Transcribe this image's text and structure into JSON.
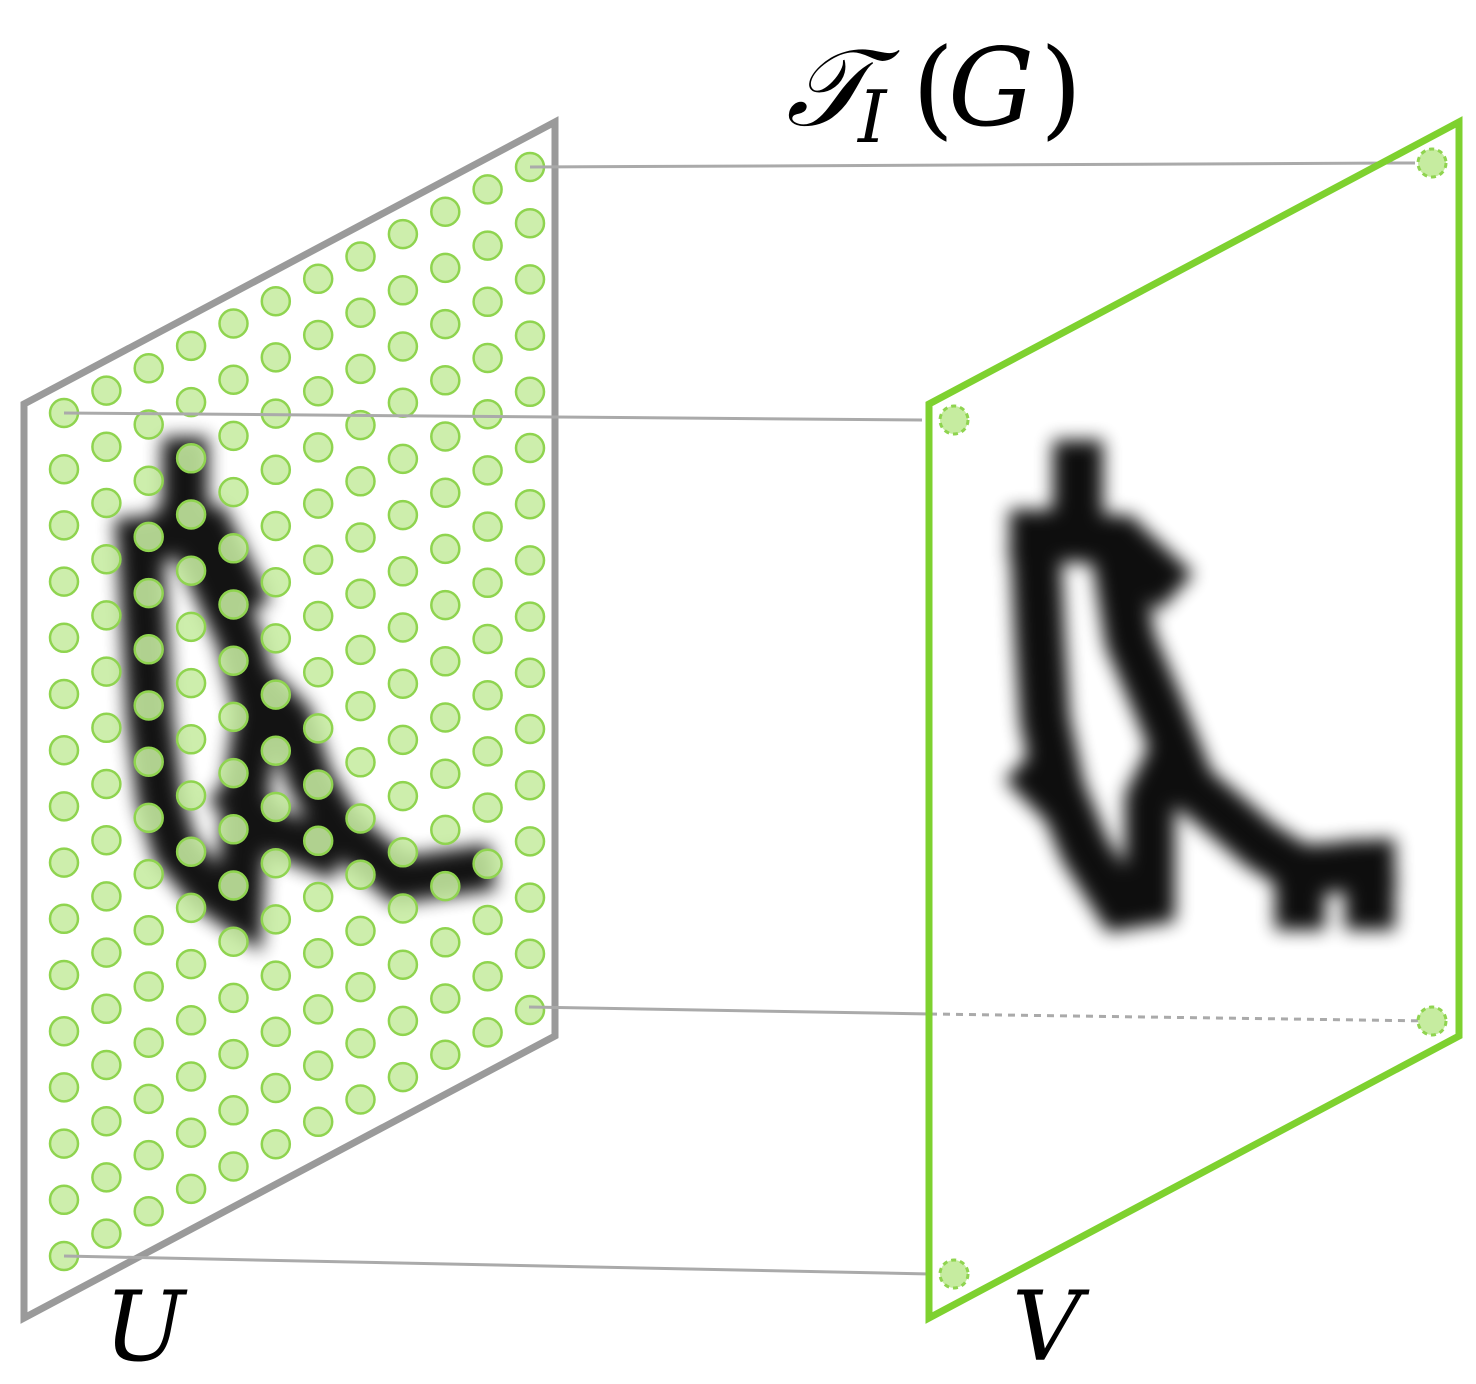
{
  "title": {
    "operator": "𝒯",
    "subscript": "I",
    "argument": "G",
    "open_paren": "(",
    "close_paren": ")"
  },
  "planes": {
    "source_label": "U",
    "target_label": "V"
  },
  "colors": {
    "source_frame": "#9a9a9a",
    "target_frame": "#7ed12f",
    "grid_dot_fill": "#c6eca0",
    "grid_dot_stroke": "#8fd44f",
    "connector": "#aaaaaa",
    "ink": "#000000"
  },
  "grid": {
    "columns": 12,
    "rows": 16
  }
}
